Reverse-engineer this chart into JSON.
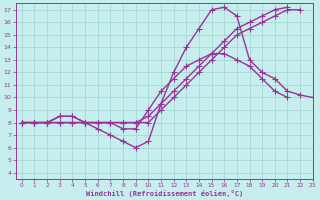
{
  "xlabel": "Windchill (Refroidissement éolien,°C)",
  "xlim": [
    -0.5,
    23
  ],
  "ylim": [
    3.5,
    17.5
  ],
  "xticks": [
    0,
    1,
    2,
    3,
    4,
    5,
    6,
    7,
    8,
    9,
    10,
    11,
    12,
    13,
    14,
    15,
    16,
    17,
    18,
    19,
    20,
    21,
    22,
    23
  ],
  "yticks": [
    4,
    5,
    6,
    7,
    8,
    9,
    10,
    11,
    12,
    13,
    14,
    15,
    16,
    17
  ],
  "bg_color": "#c5eeed",
  "grid_color": "#9fd4d2",
  "line_color": "#993399",
  "line_width": 1.0,
  "marker": "+",
  "marker_size": 4,
  "curves": [
    [
      8.0,
      8.0,
      8.0,
      8.0,
      8.0,
      8.0,
      8.0,
      8.0,
      8.0,
      8.0,
      8.0,
      9.0,
      10.0,
      11.0,
      12.0,
      13.0,
      14.0,
      15.0,
      15.5,
      16.0,
      16.5,
      17.0,
      17.0,
      null
    ],
    [
      8.0,
      8.0,
      8.0,
      8.0,
      8.0,
      8.0,
      8.0,
      8.0,
      8.0,
      8.0,
      8.5,
      9.5,
      10.5,
      11.5,
      12.5,
      13.5,
      14.5,
      15.5,
      16.0,
      16.5,
      17.0,
      17.2,
      null,
      null
    ],
    [
      8.0,
      8.0,
      8.0,
      8.5,
      8.5,
      8.0,
      7.5,
      7.0,
      6.5,
      6.0,
      6.5,
      9.5,
      12.0,
      14.0,
      15.5,
      17.0,
      17.2,
      16.5,
      13.0,
      12.0,
      11.5,
      10.5,
      10.2,
      10.0
    ],
    [
      8.0,
      8.0,
      8.0,
      8.5,
      8.5,
      8.0,
      8.0,
      8.0,
      7.5,
      7.5,
      9.0,
      10.5,
      11.5,
      12.5,
      13.0,
      13.5,
      13.5,
      13.0,
      12.5,
      11.5,
      10.5,
      10.0,
      null,
      null
    ]
  ]
}
